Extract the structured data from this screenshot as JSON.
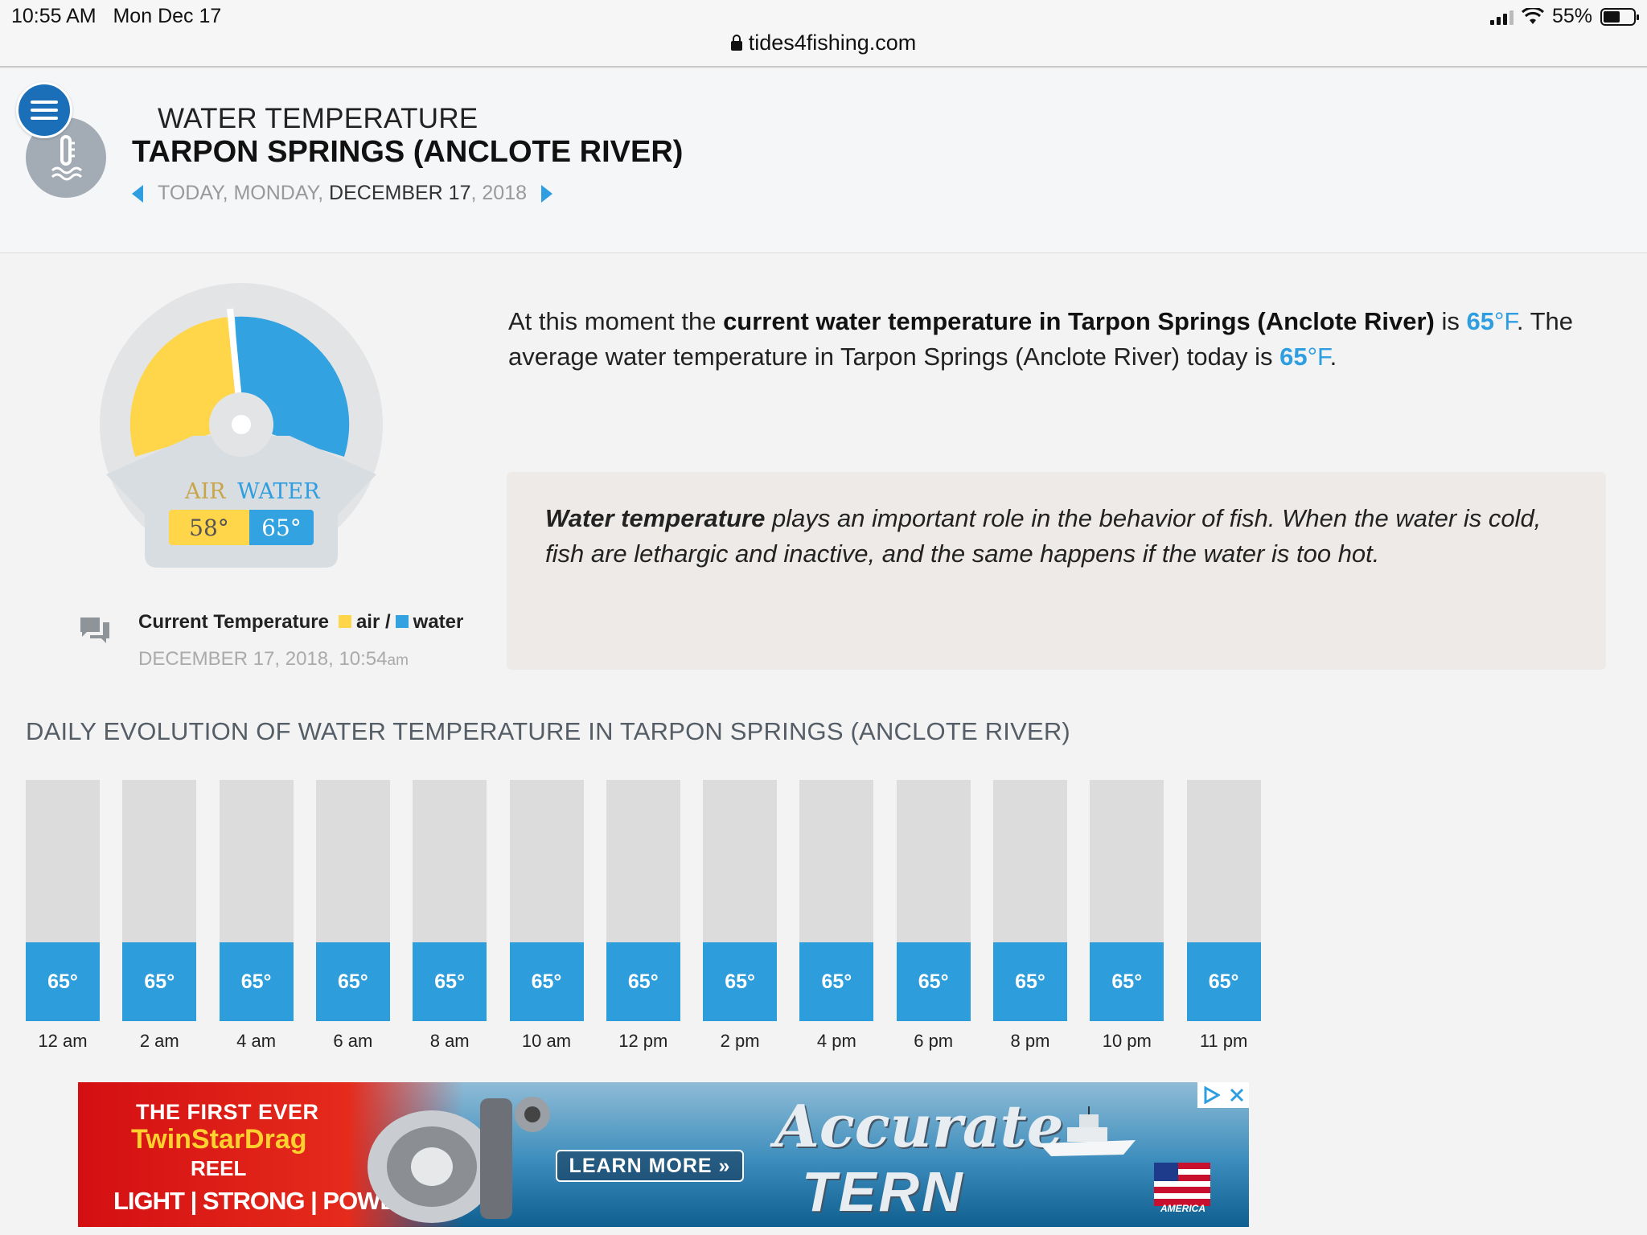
{
  "status_bar": {
    "time": "10:55 AM",
    "date": "Mon Dec 17",
    "battery": "55%",
    "battery_level": 0.55
  },
  "browser": {
    "url": "tides4fishing.com"
  },
  "header": {
    "subtitle": "WATER TEMPERATURE",
    "title": "TARPON SPRINGS (ANCLOTE RIVER)",
    "date_prefix": "TODAY, MONDAY,",
    "date_main": "DECEMBER 17",
    "date_year": ", 2018"
  },
  "gauge": {
    "air_label": "AIR",
    "water_label": "WATER",
    "air_value": "58°",
    "water_value": "65°",
    "air_color": "#ffd54a",
    "water_color": "#32a2e0"
  },
  "legend": {
    "title": "Current Temperature",
    "air": "air",
    "separator": "/",
    "water": "water",
    "date": "DECEMBER 17, 2018, 10:54",
    "ampm": "am"
  },
  "intro": {
    "p1": "At this moment the ",
    "bold": "current water temperature in Tarpon Springs (Anclote River)",
    "p2": " is ",
    "temp1": "65",
    "unit1": "°F",
    "p3": ". The average water temperature in Tarpon Springs (Anclote River) today is ",
    "temp2": "65",
    "unit2": "°F",
    "p4": "."
  },
  "note": {
    "bold": "Water temperature",
    "text": " plays an important role in the behavior of fish. When the water is cold, fish are lethargic and inactive, and the same happens if the water is too hot."
  },
  "daily": {
    "title": "DAILY EVOLUTION OF WATER TEMPERATURE IN TARPON SPRINGS (ANCLOTE RIVER)",
    "hours": [
      {
        "time": "12 am",
        "temp": "65°",
        "value": 65
      },
      {
        "time": "2 am",
        "temp": "65°",
        "value": 65
      },
      {
        "time": "4 am",
        "temp": "65°",
        "value": 65
      },
      {
        "time": "6 am",
        "temp": "65°",
        "value": 65
      },
      {
        "time": "8 am",
        "temp": "65°",
        "value": 65
      },
      {
        "time": "10 am",
        "temp": "65°",
        "value": 65
      },
      {
        "time": "12 pm",
        "temp": "65°",
        "value": 65
      },
      {
        "time": "2 pm",
        "temp": "65°",
        "value": 65
      },
      {
        "time": "4 pm",
        "temp": "65°",
        "value": 65
      },
      {
        "time": "6 pm",
        "temp": "65°",
        "value": 65
      },
      {
        "time": "8 pm",
        "temp": "65°",
        "value": 65
      },
      {
        "time": "10 pm",
        "temp": "65°",
        "value": 65
      },
      {
        "time": "11 pm",
        "temp": "65°",
        "value": 65
      }
    ]
  },
  "ad": {
    "line1": "THE FIRST EVER",
    "line2": "TwinStarDrag",
    "line3": "REEL",
    "line4": "LIGHT | STRONG | POWERFUL",
    "button": "LEARN MORE »",
    "brand1": "Accurate",
    "brand2": "TERN",
    "flag_text": "AMERICA"
  }
}
